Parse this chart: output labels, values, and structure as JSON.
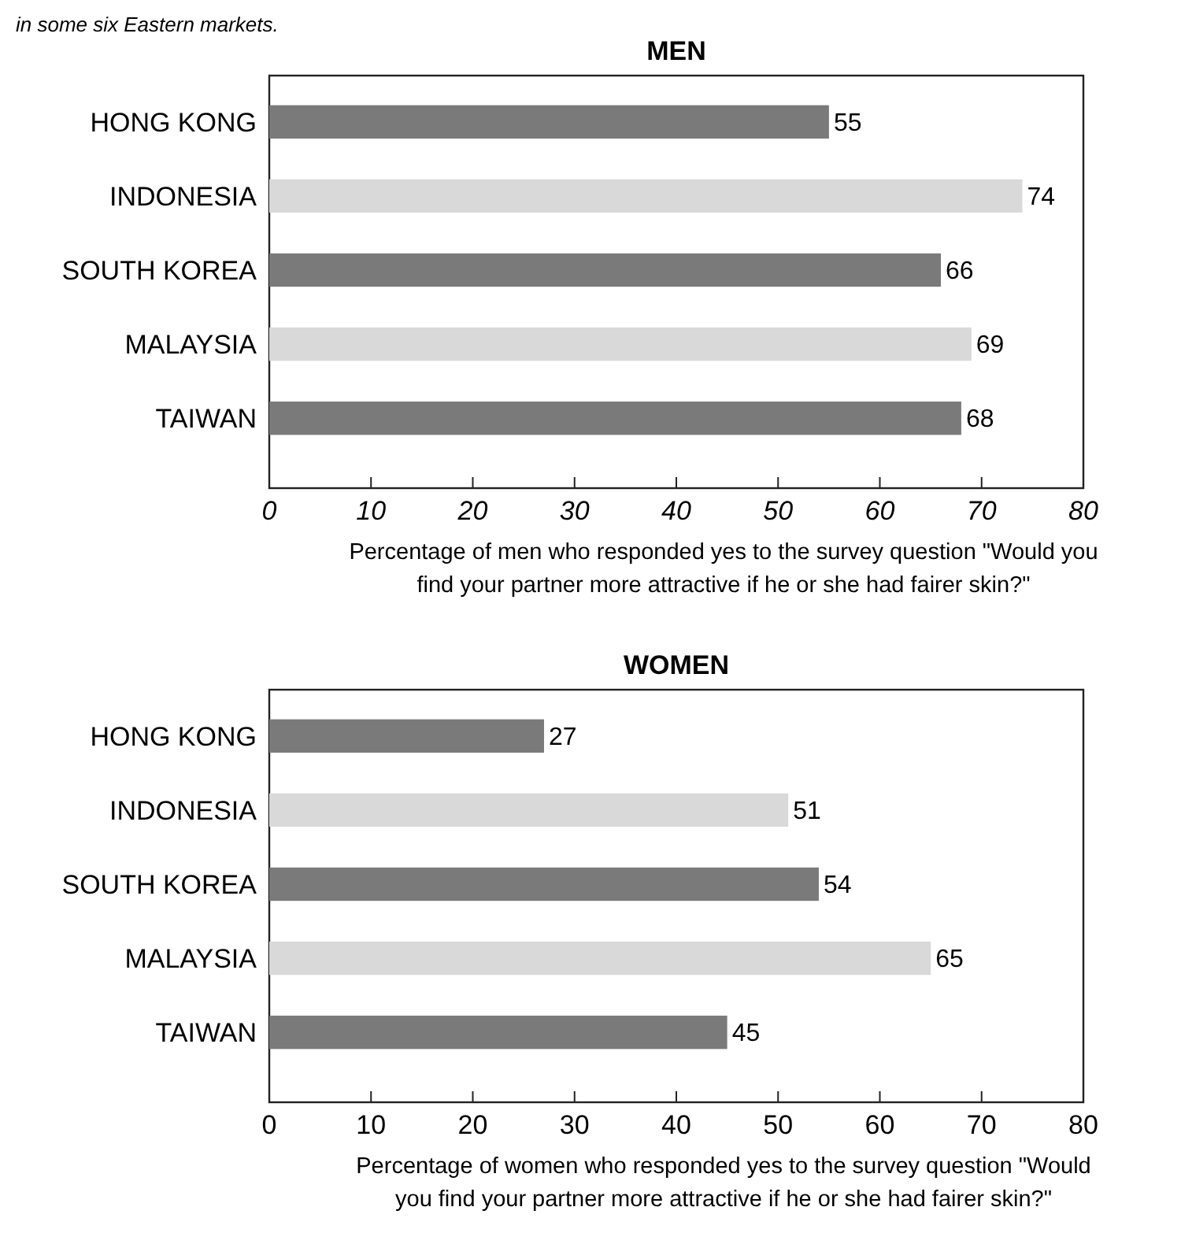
{
  "chart_data": [
    {
      "type": "bar",
      "orientation": "horizontal",
      "title": "MEN",
      "annotations": [
        "in some six Eastern markets."
      ],
      "categories": [
        "HONG KONG",
        "INDONESIA",
        "SOUTH KOREA",
        "MALAYSIA",
        "TAIWAN"
      ],
      "values": [
        55,
        74,
        66,
        69,
        68
      ],
      "colors": [
        "#7a7a7a",
        "#d9d9d9",
        "#7a7a7a",
        "#d9d9d9",
        "#7a7a7a"
      ],
      "data_labels": true,
      "xlim": [
        0,
        80
      ],
      "xticks": [
        0,
        10,
        20,
        30,
        40,
        50,
        60,
        70,
        80
      ],
      "xlabel": "Percentage of men who responded yes to the survey question \"Would you find your partner more attractive if he or she had fairer skin?\""
    },
    {
      "type": "bar",
      "orientation": "horizontal",
      "title": "WOMEN",
      "categories": [
        "HONG KONG",
        "INDONESIA",
        "SOUTH KOREA",
        "MALAYSIA",
        "TAIWAN"
      ],
      "values": [
        27,
        51,
        54,
        65,
        45
      ],
      "colors": [
        "#7a7a7a",
        "#d9d9d9",
        "#7a7a7a",
        "#d9d9d9",
        "#7a7a7a"
      ],
      "data_labels": true,
      "xlim": [
        0,
        80
      ],
      "xticks": [
        0,
        10,
        20,
        30,
        40,
        50,
        60,
        70,
        80
      ],
      "xlabel": "Percentage of women who responded yes to the survey question \"Would you find your partner more attractive if he or she had fairer skin?\""
    }
  ]
}
